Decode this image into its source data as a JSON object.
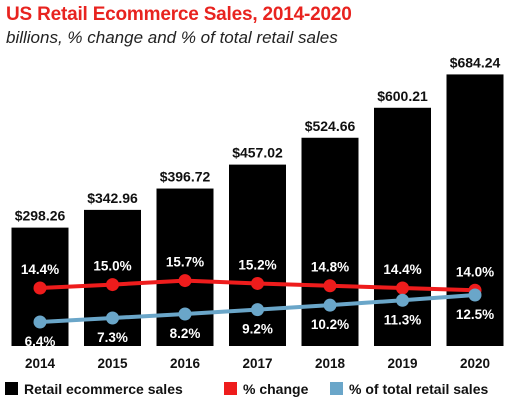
{
  "chart_data": {
    "type": "bar",
    "title": "US Retail Ecommerce Sales, 2014-2020",
    "subtitle": "billions, % change and % of total retail sales",
    "categories": [
      "2014",
      "2015",
      "2016",
      "2017",
      "2018",
      "2019",
      "2020"
    ],
    "series": [
      {
        "name": "Retail ecommerce sales",
        "type": "bar",
        "color": "#000000",
        "values": [
          298.26,
          342.96,
          396.72,
          457.02,
          524.66,
          600.21,
          684.24
        ],
        "labels": [
          "$298.26",
          "$342.96",
          "$396.72",
          "$457.02",
          "$524.66",
          "$600.21",
          "$684.24"
        ]
      },
      {
        "name": "% change",
        "type": "line",
        "color": "#ee1c1c",
        "values": [
          14.4,
          15.0,
          15.7,
          15.2,
          14.8,
          14.4,
          14.0
        ],
        "labels": [
          "14.4%",
          "15.0%",
          "15.7%",
          "15.2%",
          "14.8%",
          "14.4%",
          "14.0%"
        ]
      },
      {
        "name": "% of total retail sales",
        "type": "line",
        "color": "#6aa6c9",
        "values": [
          6.4,
          7.3,
          8.2,
          9.2,
          10.2,
          11.3,
          12.5
        ],
        "labels": [
          "6.4%",
          "7.3%",
          "8.2%",
          "9.2%",
          "10.2%",
          "11.3%",
          "12.5%"
        ]
      }
    ],
    "legend_position": "bottom",
    "grid": false
  }
}
